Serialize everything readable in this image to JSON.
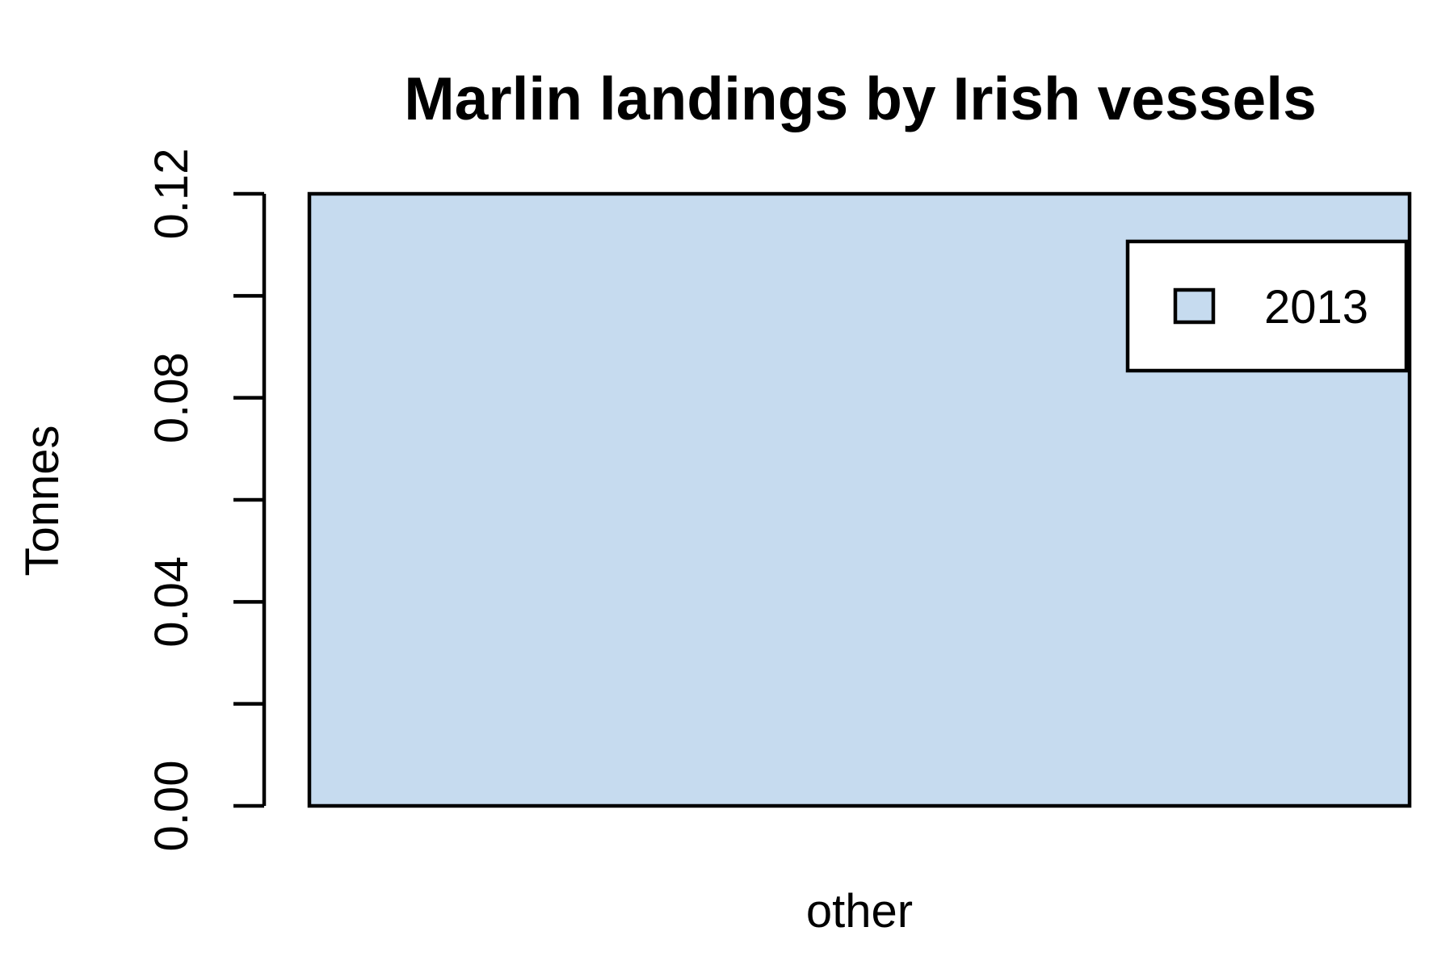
{
  "chart_data": {
    "type": "bar",
    "title": "Marlin landings by Irish vessels",
    "xlabel": "",
    "ylabel": "Tonnes",
    "categories": [
      "other"
    ],
    "series": [
      {
        "name": "2013",
        "values": [
          0.12
        ],
        "color": "#c6dbef"
      }
    ],
    "ylim": [
      0,
      0.12
    ],
    "yticks": [
      0,
      0.02,
      0.04,
      0.06,
      0.08,
      0.1,
      0.12
    ],
    "ytick_labels": [
      "0.00",
      "",
      "0.04",
      "",
      "0.08",
      "",
      "0.12"
    ],
    "grid": false,
    "legend": {
      "position": "top-right",
      "entries": [
        "2013"
      ]
    }
  }
}
